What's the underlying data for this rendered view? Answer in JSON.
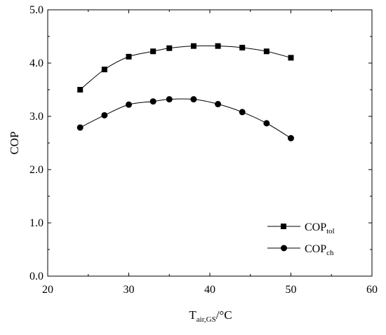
{
  "chart_data": {
    "type": "line",
    "xlabel": {
      "main": "T",
      "sub": "air,GS",
      "unit": "/°C"
    },
    "ylabel": "COP",
    "xlim": [
      20,
      60
    ],
    "ylim": [
      0,
      5
    ],
    "x_ticks": [
      20,
      30,
      40,
      50,
      60
    ],
    "x_tick_labels": [
      "20",
      "30",
      "40",
      "50",
      "60"
    ],
    "y_ticks": [
      0,
      1,
      2,
      3,
      4,
      5
    ],
    "y_tick_labels": [
      "0.0",
      "1.0",
      "2.0",
      "3.0",
      "4.0",
      "5.0"
    ],
    "grid": false,
    "legend_position": "bottom-right",
    "series": [
      {
        "name": "COP_tol",
        "label_main": "COP",
        "label_sub": "tol",
        "marker": "square",
        "color": "#000000",
        "x": [
          24,
          27,
          30,
          33,
          35,
          38,
          41,
          44,
          47,
          50
        ],
        "values": [
          3.5,
          3.88,
          4.12,
          4.22,
          4.28,
          4.32,
          4.32,
          4.29,
          4.22,
          4.1
        ]
      },
      {
        "name": "COP_ch",
        "label_main": "COP",
        "label_sub": "ch",
        "marker": "circle",
        "color": "#000000",
        "x": [
          24,
          27,
          30,
          33,
          35,
          38,
          41,
          44,
          47,
          50
        ],
        "values": [
          2.79,
          3.02,
          3.22,
          3.28,
          3.32,
          3.32,
          3.23,
          3.08,
          2.87,
          2.59
        ]
      }
    ]
  }
}
